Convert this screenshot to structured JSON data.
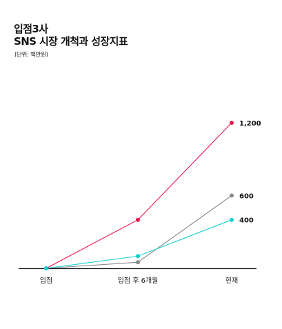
{
  "title_line1": "입점3사",
  "title_line2": "SNS 시장 개척과 성장지표",
  "unit": "(단위: 백만원)",
  "chart_data": {
    "type": "line",
    "categories": [
      "입점",
      "입점 후 6개월",
      "현재"
    ],
    "series": [
      {
        "values": [
          0,
          400,
          1200
        ],
        "color": "#e8174a",
        "end_label": "1,200"
      },
      {
        "values": [
          0,
          50,
          600
        ],
        "color": "#8a8a8a",
        "end_label": "600"
      },
      {
        "values": [
          0,
          100,
          400
        ],
        "color": "#17cfd0",
        "end_label": "400"
      }
    ],
    "ylim": [
      0,
      1200
    ],
    "grid": false
  }
}
